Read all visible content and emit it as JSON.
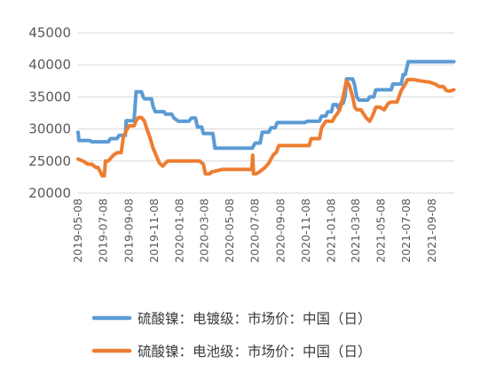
{
  "chart_data": {
    "type": "line",
    "title": "",
    "xlabel": "",
    "ylabel": "",
    "ylim": [
      20000,
      45000
    ],
    "yticks": [
      "20000",
      "25000",
      "30000",
      "35000",
      "40000",
      "45000"
    ],
    "xticks": [
      "2019-05-08",
      "2019-07-08",
      "2019-09-08",
      "2019-11-08",
      "2020-01-08",
      "2020-03-08",
      "2020-05-08",
      "2020-07-08",
      "2020-09-08",
      "2020-11-08",
      "2021-01-08",
      "2021-03-08",
      "2021-05-08",
      "2021-07-08",
      "2021-09-08"
    ],
    "x_range": [
      "2019-05-08",
      "2021-10-31"
    ],
    "grid": "horizontal",
    "legend_position": "bottom",
    "series": [
      {
        "name": "硫酸镍：电镀级：市场价：中国（日）",
        "color": "#5B9BD5",
        "points": [
          [
            "2019-05-08",
            29500
          ],
          [
            "2019-05-10",
            28200
          ],
          [
            "2019-06-05",
            28200
          ],
          [
            "2019-06-10",
            28000
          ],
          [
            "2019-07-20",
            28000
          ],
          [
            "2019-07-25",
            28500
          ],
          [
            "2019-08-10",
            28500
          ],
          [
            "2019-08-15",
            29000
          ],
          [
            "2019-08-30",
            29000
          ],
          [
            "2019-09-01",
            31300
          ],
          [
            "2019-09-20",
            31300
          ],
          [
            "2019-09-25",
            35800
          ],
          [
            "2019-10-08",
            35800
          ],
          [
            "2019-10-12",
            35000
          ],
          [
            "2019-10-15",
            34700
          ],
          [
            "2019-11-01",
            34700
          ],
          [
            "2019-11-05",
            33500
          ],
          [
            "2019-11-10",
            32700
          ],
          [
            "2019-12-01",
            32700
          ],
          [
            "2019-12-05",
            32300
          ],
          [
            "2019-12-20",
            32300
          ],
          [
            "2019-12-25",
            31700
          ],
          [
            "2020-01-05",
            31200
          ],
          [
            "2020-01-30",
            31200
          ],
          [
            "2020-02-05",
            31700
          ],
          [
            "2020-02-15",
            31700
          ],
          [
            "2020-02-20",
            30300
          ],
          [
            "2020-03-01",
            30300
          ],
          [
            "2020-03-05",
            29300
          ],
          [
            "2020-03-28",
            29300
          ],
          [
            "2020-04-02",
            27000
          ],
          [
            "2020-07-01",
            27000
          ],
          [
            "2020-07-08",
            27800
          ],
          [
            "2020-07-20",
            27800
          ],
          [
            "2020-07-25",
            29500
          ],
          [
            "2020-08-10",
            29500
          ],
          [
            "2020-08-15",
            30200
          ],
          [
            "2020-08-25",
            30200
          ],
          [
            "2020-08-30",
            31000
          ],
          [
            "2020-11-05",
            31000
          ],
          [
            "2020-11-10",
            31200
          ],
          [
            "2020-12-10",
            31200
          ],
          [
            "2020-12-15",
            32000
          ],
          [
            "2020-12-25",
            32000
          ],
          [
            "2020-12-30",
            32700
          ],
          [
            "2021-01-08",
            32700
          ],
          [
            "2021-01-12",
            33800
          ],
          [
            "2021-01-20",
            33800
          ],
          [
            "2021-01-25",
            33200
          ],
          [
            "2021-01-30",
            34000
          ],
          [
            "2021-02-05",
            34000
          ],
          [
            "2021-02-10",
            35200
          ],
          [
            "2021-02-13",
            37800
          ],
          [
            "2021-02-28",
            37800
          ],
          [
            "2021-03-05",
            36800
          ],
          [
            "2021-03-10",
            35000
          ],
          [
            "2021-03-15",
            34500
          ],
          [
            "2021-04-05",
            34500
          ],
          [
            "2021-04-10",
            35000
          ],
          [
            "2021-04-20",
            35000
          ],
          [
            "2021-04-25",
            36100
          ],
          [
            "2021-06-01",
            36100
          ],
          [
            "2021-06-05",
            37000
          ],
          [
            "2021-06-25",
            37000
          ],
          [
            "2021-06-30",
            38500
          ],
          [
            "2021-07-05",
            38500
          ],
          [
            "2021-07-12",
            40500
          ],
          [
            "2021-10-30",
            40500
          ]
        ]
      },
      {
        "name": "硫酸镍：电池级：市场价：中国（日）",
        "color": "#ED7D31",
        "points": [
          [
            "2019-05-08",
            25300
          ],
          [
            "2019-05-20",
            25000
          ],
          [
            "2019-06-01",
            24500
          ],
          [
            "2019-06-10",
            24500
          ],
          [
            "2019-06-20",
            24000
          ],
          [
            "2019-06-25",
            24000
          ],
          [
            "2019-07-01",
            23300
          ],
          [
            "2019-07-05",
            22700
          ],
          [
            "2019-07-10",
            22700
          ],
          [
            "2019-07-13",
            25000
          ],
          [
            "2019-07-20",
            25000
          ],
          [
            "2019-07-25",
            25400
          ],
          [
            "2019-08-01",
            25900
          ],
          [
            "2019-08-10",
            26300
          ],
          [
            "2019-08-20",
            26300
          ],
          [
            "2019-08-25",
            28700
          ],
          [
            "2019-09-01",
            29700
          ],
          [
            "2019-09-08",
            30500
          ],
          [
            "2019-09-20",
            30500
          ],
          [
            "2019-09-25",
            31300
          ],
          [
            "2019-10-01",
            31800
          ],
          [
            "2019-10-08",
            31800
          ],
          [
            "2019-10-15",
            31200
          ],
          [
            "2019-10-20",
            30200
          ],
          [
            "2019-10-28",
            28700
          ],
          [
            "2019-11-05",
            27000
          ],
          [
            "2019-11-12",
            25900
          ],
          [
            "2019-11-20",
            24700
          ],
          [
            "2019-11-28",
            24200
          ],
          [
            "2019-12-05",
            24700
          ],
          [
            "2019-12-10",
            25000
          ],
          [
            "2020-02-25",
            25000
          ],
          [
            "2020-03-05",
            24500
          ],
          [
            "2020-03-10",
            23000
          ],
          [
            "2020-03-20",
            23000
          ],
          [
            "2020-03-25",
            23300
          ],
          [
            "2020-04-01",
            23400
          ],
          [
            "2020-04-20",
            23700
          ],
          [
            "2020-06-30",
            23700
          ],
          [
            "2020-07-02",
            25900
          ],
          [
            "2020-07-04",
            23000
          ],
          [
            "2020-07-10",
            23000
          ],
          [
            "2020-07-20",
            23400
          ],
          [
            "2020-08-01",
            24000
          ],
          [
            "2020-08-10",
            24700
          ],
          [
            "2020-08-20",
            25900
          ],
          [
            "2020-08-28",
            26400
          ],
          [
            "2020-09-03",
            27400
          ],
          [
            "2020-11-15",
            27400
          ],
          [
            "2020-11-20",
            28500
          ],
          [
            "2020-12-10",
            28500
          ],
          [
            "2020-12-15",
            30200
          ],
          [
            "2020-12-25",
            31200
          ],
          [
            "2021-01-10",
            31200
          ],
          [
            "2021-01-15",
            31800
          ],
          [
            "2021-01-22",
            32400
          ],
          [
            "2021-01-28",
            33000
          ],
          [
            "2021-02-05",
            35000
          ],
          [
            "2021-02-13",
            37500
          ],
          [
            "2021-02-20",
            36800
          ],
          [
            "2021-02-28",
            35000
          ],
          [
            "2021-03-05",
            33400
          ],
          [
            "2021-03-10",
            33000
          ],
          [
            "2021-03-20",
            33000
          ],
          [
            "2021-04-01",
            31800
          ],
          [
            "2021-04-10",
            31200
          ],
          [
            "2021-04-18",
            32200
          ],
          [
            "2021-04-25",
            33400
          ],
          [
            "2021-05-05",
            33400
          ],
          [
            "2021-05-15",
            33000
          ],
          [
            "2021-05-25",
            34000
          ],
          [
            "2021-06-01",
            34200
          ],
          [
            "2021-06-15",
            34200
          ],
          [
            "2021-06-25",
            36000
          ],
          [
            "2021-07-05",
            37000
          ],
          [
            "2021-07-10",
            37700
          ],
          [
            "2021-07-25",
            37700
          ],
          [
            "2021-08-10",
            37500
          ],
          [
            "2021-09-01",
            37300
          ],
          [
            "2021-09-15",
            37000
          ],
          [
            "2021-09-25",
            36600
          ],
          [
            "2021-10-05",
            36600
          ],
          [
            "2021-10-12",
            36000
          ],
          [
            "2021-10-20",
            35900
          ],
          [
            "2021-10-30",
            36100
          ]
        ]
      }
    ]
  }
}
